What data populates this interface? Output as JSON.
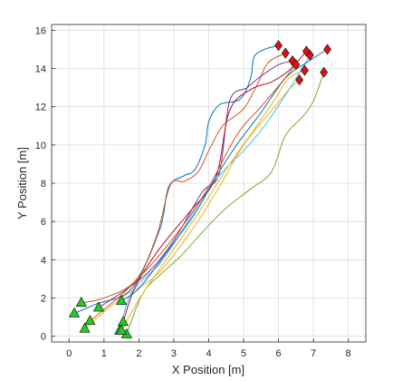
{
  "chart_data": {
    "type": "line",
    "title": "",
    "xlabel": "X Position [m]",
    "ylabel": "Y Position [m]",
    "xlim": [
      -0.5,
      8.5
    ],
    "ylim": [
      -0.3,
      16.3
    ],
    "xticks": [
      0,
      1,
      2,
      3,
      4,
      5,
      6,
      7,
      8
    ],
    "yticks": [
      0,
      2,
      4,
      6,
      8,
      10,
      12,
      14,
      16
    ],
    "grid": true,
    "start_marker": {
      "shape": "triangle",
      "color": "#22cc22"
    },
    "goal_marker": {
      "shape": "diamond",
      "color": "#e01010"
    },
    "series": [
      {
        "color": "#0072BD",
        "x": [
          0.15,
          0.8,
          1.8,
          2.6,
          2.85,
          3.3,
          3.6,
          3.9,
          4.0,
          4.3,
          4.9,
          5.2,
          5.3,
          5.6,
          6.0
        ],
        "y": [
          1.2,
          1.7,
          2.5,
          5.6,
          7.8,
          8.4,
          8.7,
          10.0,
          11.2,
          12.1,
          12.4,
          13.5,
          14.6,
          15.0,
          15.2
        ],
        "start": [
          0.15,
          1.2
        ],
        "goal": [
          6.0,
          15.2
        ]
      },
      {
        "color": "#D95319",
        "x": [
          0.35,
          1.0,
          1.9,
          2.5,
          2.9,
          3.3,
          3.7,
          4.0,
          4.4,
          5.0,
          5.4,
          5.7,
          6.2
        ],
        "y": [
          1.75,
          2.0,
          2.9,
          5.2,
          7.9,
          8.1,
          8.6,
          9.7,
          11.0,
          11.9,
          13.2,
          14.3,
          14.8
        ],
        "start": [
          0.35,
          1.75
        ],
        "goal": [
          6.2,
          14.8
        ]
      },
      {
        "color": "#EDB120",
        "x": [
          0.45,
          1.5,
          2.5,
          3.5,
          4.3,
          5.0,
          5.8,
          6.3,
          6.6
        ],
        "y": [
          0.4,
          2.0,
          3.2,
          5.5,
          7.8,
          10.0,
          11.8,
          12.9,
          13.4
        ],
        "start": [
          0.45,
          0.4
        ],
        "goal": [
          6.6,
          13.4
        ]
      },
      {
        "color": "#7E2F8E",
        "x": [
          0.85,
          1.6,
          2.3,
          3.0,
          3.8,
          4.3,
          4.6,
          5.1,
          5.5,
          6.0,
          6.4
        ],
        "y": [
          1.5,
          2.4,
          3.4,
          5.0,
          7.5,
          8.5,
          12.3,
          13.0,
          13.6,
          14.2,
          14.4
        ],
        "start": [
          0.85,
          1.5
        ],
        "goal": [
          6.4,
          14.4
        ]
      },
      {
        "color": "#77AC30",
        "x": [
          1.65,
          2.1,
          2.6,
          3.2,
          3.9,
          4.5,
          5.2,
          5.8,
          6.2,
          6.7,
          7.0,
          7.3
        ],
        "y": [
          0.1,
          2.2,
          3.2,
          4.2,
          5.6,
          6.7,
          7.7,
          8.6,
          10.5,
          11.5,
          12.3,
          13.8
        ],
        "start": [
          1.65,
          0.1
        ],
        "goal": [
          7.3,
          13.8
        ]
      },
      {
        "color": "#4DBEEE",
        "x": [
          1.45,
          1.8,
          2.6,
          3.3,
          4.0,
          4.5,
          5.0,
          5.6,
          6.3,
          6.9
        ],
        "y": [
          0.3,
          2.3,
          3.8,
          5.7,
          7.7,
          8.8,
          9.7,
          11.0,
          12.9,
          14.7
        ],
        "start": [
          1.45,
          0.3
        ],
        "goal": [
          6.9,
          14.7
        ]
      },
      {
        "color": "#A2142F",
        "x": [
          1.55,
          1.9,
          2.6,
          3.5,
          4.2,
          4.6,
          5.2,
          5.8,
          6.3,
          6.8
        ],
        "y": [
          0.75,
          2.6,
          4.6,
          6.6,
          8.3,
          11.8,
          12.9,
          13.3,
          13.9,
          14.9
        ],
        "start": [
          1.55,
          0.75
        ],
        "goal": [
          6.8,
          14.9
        ]
      },
      {
        "color": "#0072BD",
        "x": [
          1.5,
          2.0,
          2.8,
          3.6,
          4.2,
          4.8,
          5.5,
          6.2,
          6.8,
          7.4
        ],
        "y": [
          1.85,
          2.5,
          4.4,
          6.4,
          8.3,
          10.0,
          11.7,
          13.5,
          14.3,
          15.0
        ],
        "start": [
          1.5,
          1.85
        ],
        "goal": [
          7.4,
          15.0
        ]
      },
      {
        "color": "#D95319",
        "x": [
          0.6,
          1.7,
          2.8,
          3.9,
          4.8,
          5.5,
          6.1,
          6.5
        ],
        "y": [
          0.8,
          2.5,
          4.7,
          7.5,
          10.5,
          12.0,
          13.3,
          14.2
        ],
        "start": [
          0.6,
          0.8
        ],
        "goal": [
          6.5,
          14.2
        ]
      },
      {
        "color": "#EDB120",
        "x": [
          1.5,
          2.1,
          2.9,
          3.8,
          4.6,
          5.3,
          5.9,
          6.3,
          6.75
        ],
        "y": [
          0.3,
          2.2,
          4.3,
          6.7,
          9.0,
          10.8,
          12.4,
          13.5,
          13.9
        ],
        "start": [
          1.5,
          0.3
        ],
        "goal": [
          6.75,
          13.9
        ]
      }
    ]
  }
}
